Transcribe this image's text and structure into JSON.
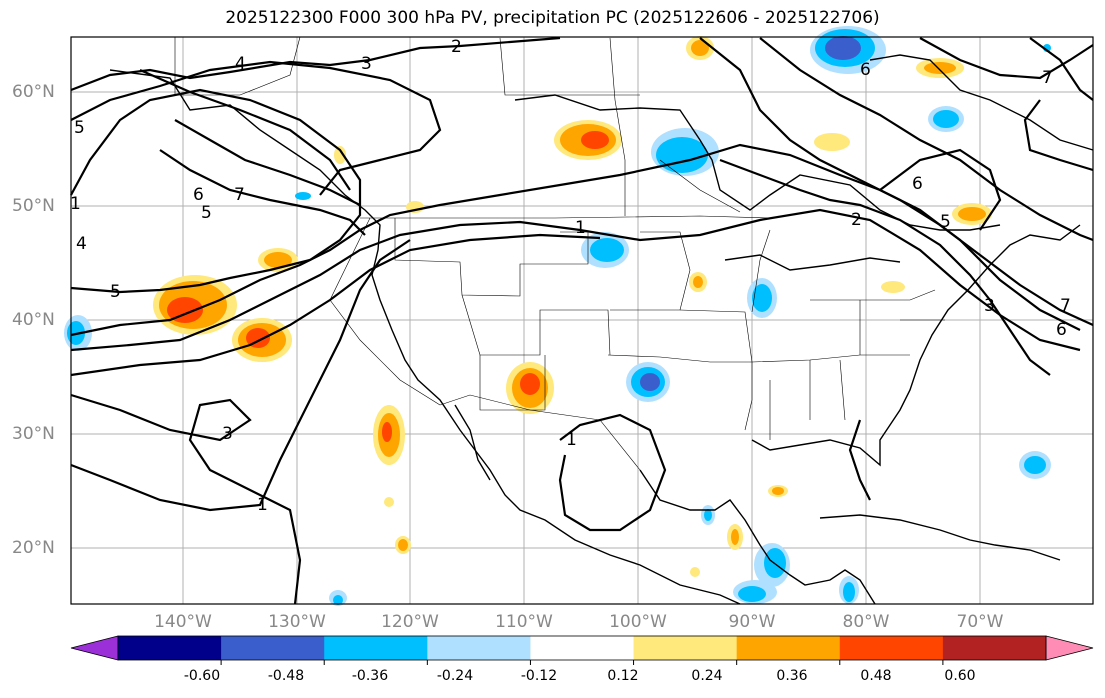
{
  "title": "2025122300 F000 300 hPa PV, precipitation PC (2025122606 - 2025122706)",
  "lat_labels": [
    "60°N",
    "50°N",
    "40°N",
    "30°N",
    "20°N"
  ],
  "lon_labels": [
    "140°W",
    "130°W",
    "120°W",
    "110°W",
    "100°W",
    "90°W",
    "80°W",
    "70°W"
  ],
  "colorbar": {
    "ticks": [
      "-0.60",
      "-0.48",
      "-0.36",
      "-0.24",
      "-0.12",
      "0.12",
      "0.24",
      "0.36",
      "0.48",
      "0.60"
    ],
    "colors": [
      "#9b30d8",
      "#00008b",
      "#3a5fcd",
      "#00bfff",
      "#b0e0ff",
      "#ffffff",
      "#ffe87c",
      "#ffa500",
      "#ff4500",
      "#b22222",
      "#ff8cb4"
    ]
  },
  "contour_labels": [
    "2",
    "3",
    "4",
    "5",
    "6",
    "7",
    "5",
    "5",
    "4",
    "1",
    "1",
    "1",
    "2",
    "3",
    "6",
    "7",
    "6",
    "5",
    "3",
    "1",
    "6",
    "7"
  ],
  "colors": {
    "frame": "#000000",
    "grid": "#b0b0b0",
    "coast": "#000000",
    "contour": "#000000"
  }
}
